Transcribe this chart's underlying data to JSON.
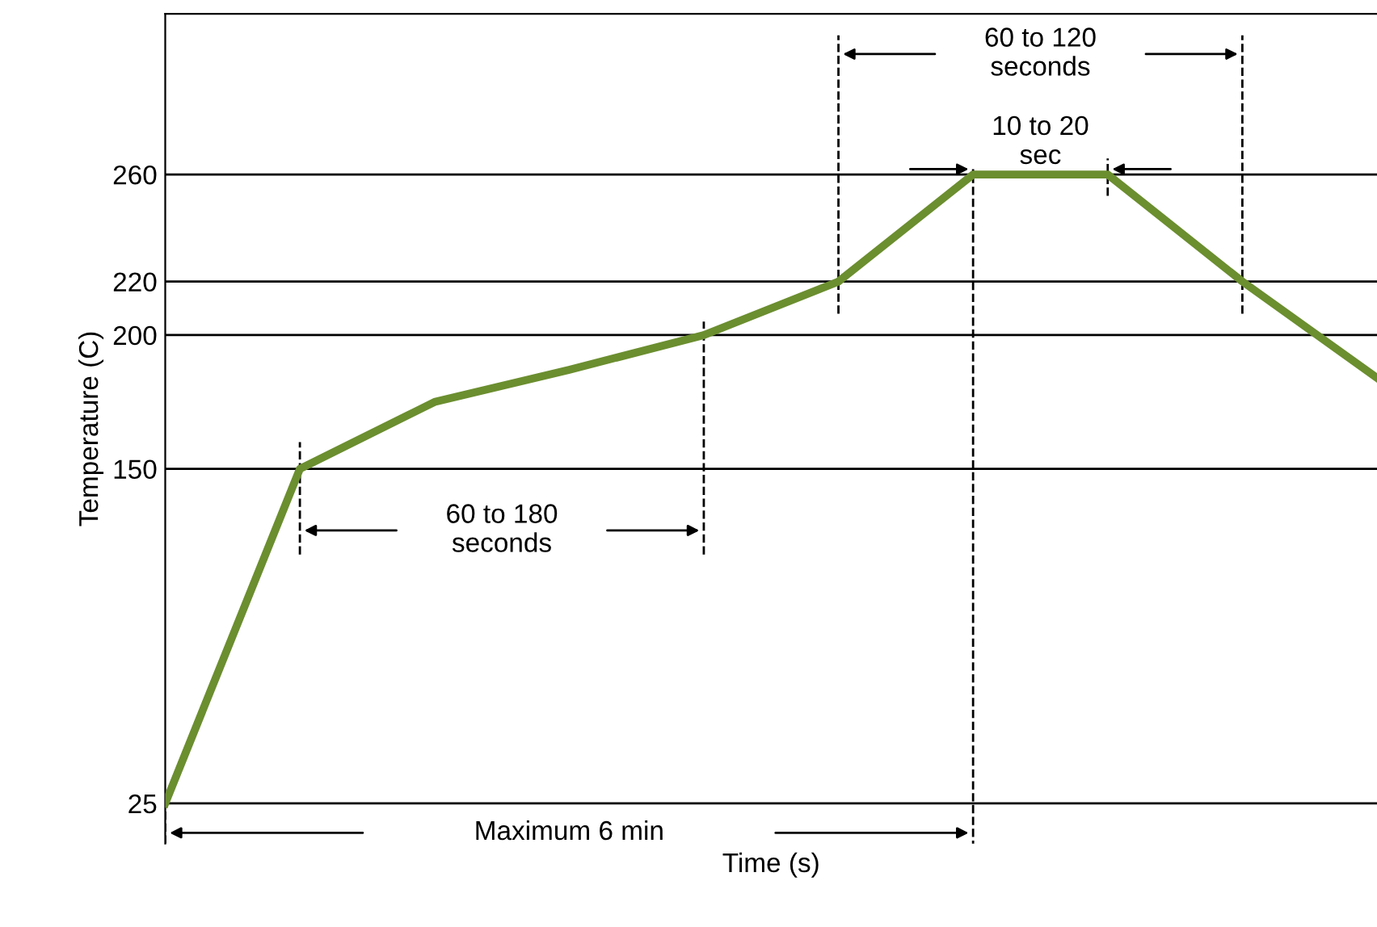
{
  "chart_data": {
    "type": "line",
    "xlabel": "Time (s)",
    "ylabel": "Temperature (C)",
    "categories": [
      null,
      null,
      null,
      null,
      null,
      null,
      null,
      null,
      null,
      null
    ],
    "series": [
      {
        "color": "#6b8e2f",
        "values": [
          25,
          150,
          175,
          187,
          200,
          220,
          260,
          260,
          220,
          184
        ]
      }
    ],
    "ylim": [
      10,
      320
    ],
    "yticks": [
      25,
      150,
      200,
      220,
      260
    ],
    "tick_labels": "y",
    "grid": "y",
    "line_style": "solid",
    "marker": "none",
    "annotations": [
      "60 to 180\nseconds",
      "60 to 120\nseconds",
      "10 to 20\nsec",
      "Maximum 6 min"
    ]
  }
}
